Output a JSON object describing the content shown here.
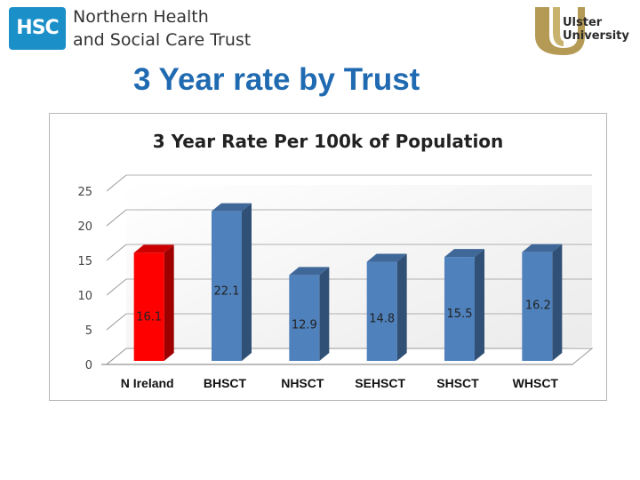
{
  "header": {
    "hsc_logo_text": "HSC",
    "trust_name_line1": "Northern Health",
    "trust_name_line2": "and Social Care Trust",
    "university_line1": "Ulster",
    "university_line2": "University"
  },
  "slide": {
    "title": "3 Year rate by Trust"
  },
  "colors": {
    "title": "#1f6ab0",
    "highlight_bar": "#ff0000",
    "bar": "#4f81bd"
  },
  "chart_data": {
    "type": "bar",
    "title": "3 Year Rate Per 100k of Population",
    "categories": [
      "N Ireland",
      "BHSCT",
      "NHSCT",
      "SEHSCT",
      "SHSCT",
      "WHSCT"
    ],
    "values": [
      16.1,
      22.1,
      12.9,
      14.8,
      15.5,
      16.2
    ],
    "value_labels": [
      "16.1",
      "22.1",
      "12.9",
      "14.8",
      "15.5",
      "16.2"
    ],
    "highlight_index": 0,
    "ylim": [
      0,
      25
    ],
    "yticks": [
      0,
      5,
      10,
      15,
      20,
      25
    ],
    "xlabel": "",
    "ylabel": "",
    "grid": true
  }
}
